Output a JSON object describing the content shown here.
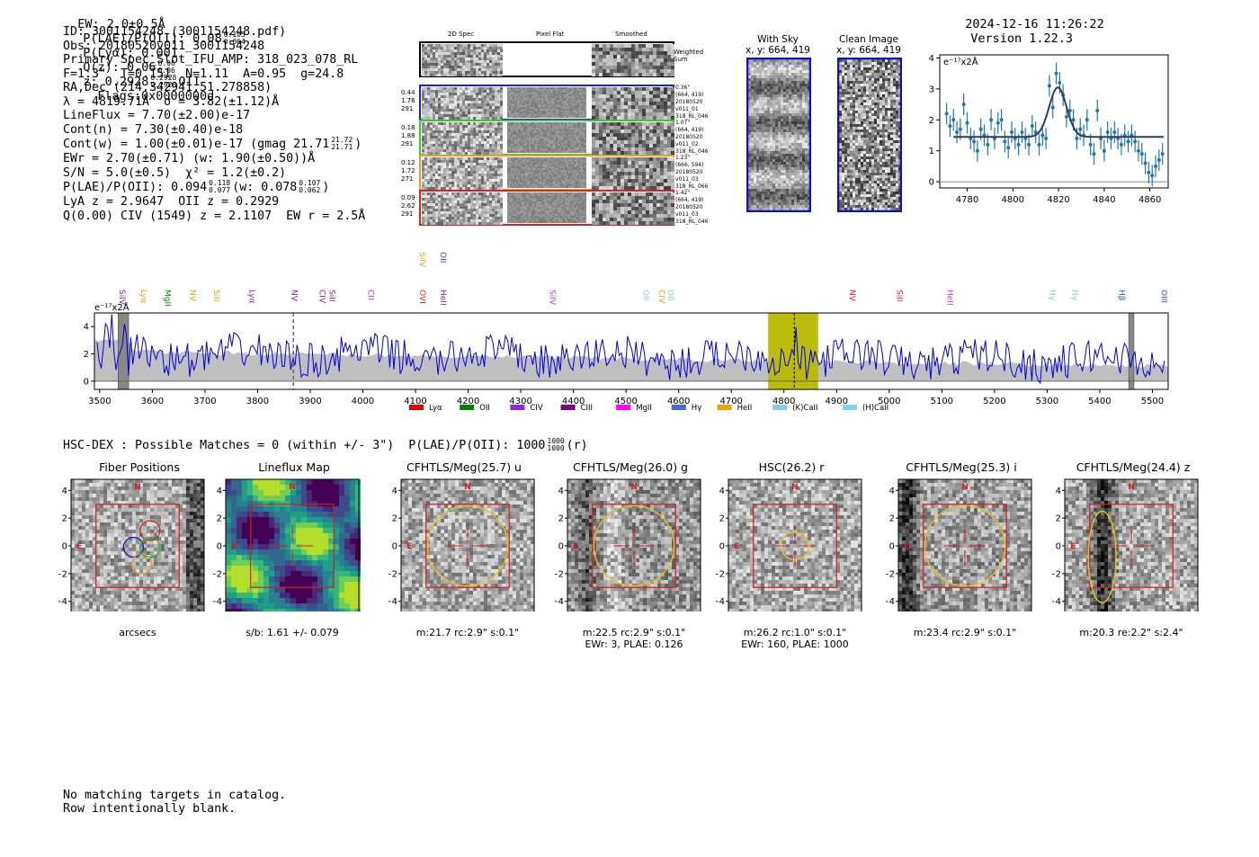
{
  "header": {
    "ew": "EW: 2.0±0.5Å",
    "plae_label": "P(LAE)/P(OII): 0.08",
    "plae_hi": "0.105",
    "plae_lo": "0.064",
    "plya": "P(Lyα): 0.001",
    "qz_label": "Q(z): 0.06",
    "qz_hi": "0.06",
    "qz_lo": "0.06",
    "z_label": "z: 0.2928",
    "z_hi": "0.2928",
    "z_lo": "0.2928",
    "z_line": "OII",
    "flags": "Flags:0x0000000d",
    "timestamp": "2024-12-16 11:26:22",
    "version": "Version 1.22.3"
  },
  "info": {
    "id": "ID: 3001154248 (3001154248.pdf)",
    "obs": "Obs: 20180520v011_3001154248",
    "primary": "Primary Spec_Slot_IFU_AMP: 318_023_078_RL",
    "fline": "F=1.3\"  T=0.151  N=1.11  A=0.95  g=24.8",
    "radec": "RA,Dec (214.342941,51.278858)",
    "lambda": "λ = 4819.71Å  σ = 3.82(±1.12)Å",
    "lineflux": "LineFlux = 7.70(±2.00)e-17",
    "contn": "Cont(n) = 7.30(±0.40)e-18",
    "contw": "Cont(w) = 1.00(±0.01)e-17 (gmag 21.71",
    "contw_hi": "21.72",
    "contw_lo": "21.71",
    "contw_end": ")",
    "ewr": "EWr = 2.70(±0.71) (w: 1.90(±0.50))Å",
    "sn": "S/N = 5.0(±0.5)  χ² = 1.2(±0.2)",
    "plae2": "P(LAE)/P(OII): 0.094",
    "plae2_hi": "0.118",
    "plae2_lo": "0.077",
    "plae2_w": "(w: 0.078",
    "plae2_w_hi": "0.107",
    "plae2_w_lo": "0.062",
    "plae2_end": ")",
    "lya": "LyA z = 2.9647  OII z = 0.2929",
    "civ": "Q(0.00) CIV (1549) z = 2.1107  EW r = 2.5Å"
  },
  "cutouts": {
    "col_2d": "2D Spec",
    "col_flat": "Pixel Flat",
    "col_smooth": "Smoothed",
    "weighted": "Weighted Sum",
    "fibers": [
      {
        "v1": "0.44",
        "v2": "1.76",
        "v3": "291",
        "r1": "0.36\"",
        "r2": "(664, 419)",
        "r3": "20180520",
        "r4": "v011_01",
        "r5": "318_RL_046",
        "color": "#1f1fd0"
      },
      {
        "v1": "0.18",
        "v2": "1.88",
        "v3": "291",
        "r1": "1.07\"",
        "r2": "(664, 419)",
        "r3": "20180520",
        "r4": "v011_02",
        "r5": "318_RL_046",
        "color": "#33cc33"
      },
      {
        "v1": "0.12",
        "v2": "1.72",
        "v3": "271",
        "r1": "1.23\"",
        "r2": "(666, 594)",
        "r3": "20180520",
        "r4": "v011_03",
        "r5": "318_RL_066",
        "color": "#e8a020"
      },
      {
        "v1": "0.09",
        "v2": "2.62",
        "v3": "291",
        "r1": "1.42\"",
        "r2": "(664, 419)",
        "r3": "20180520",
        "r4": "v011_03",
        "r5": "318_RL_046",
        "color": "#e02020"
      }
    ],
    "withsky_title": "With Sky",
    "withsky_xy": "x, y: 664, 419",
    "clean_title": "Clean Image",
    "clean_xy": "x, y: 664, 419"
  },
  "chart_data": [
    {
      "type": "scatter",
      "title": "",
      "ylabel": "e⁻¹⁷x2Å",
      "xlim": [
        4768,
        4868
      ],
      "ylim": [
        -0.2,
        4.1
      ],
      "xticks": [
        4780,
        4800,
        4820,
        4840,
        4860
      ],
      "yticks": [
        0,
        1,
        2,
        3,
        4
      ],
      "points": [
        [
          4771,
          2.2
        ],
        [
          4772.5,
          1.8
        ],
        [
          4774,
          2.0
        ],
        [
          4775.5,
          1.6
        ],
        [
          4777,
          1.7
        ],
        [
          4778.5,
          2.5
        ],
        [
          4780,
          1.9
        ],
        [
          4781.5,
          1.4
        ],
        [
          4783,
          1.3
        ],
        [
          4784.5,
          1.0
        ],
        [
          4786,
          1.7
        ],
        [
          4787.5,
          1.5
        ],
        [
          4789,
          1.2
        ],
        [
          4790.5,
          2.0
        ],
        [
          4792,
          1.4
        ],
        [
          4793.5,
          1.9
        ],
        [
          4795,
          2.0
        ],
        [
          4796.5,
          1.3
        ],
        [
          4798,
          1.1
        ],
        [
          4799.5,
          1.6
        ],
        [
          4801,
          1.4
        ],
        [
          4802.5,
          1.2
        ],
        [
          4804,
          1.6
        ],
        [
          4805.5,
          1.4
        ],
        [
          4807,
          1.2
        ],
        [
          4808.5,
          1.8
        ],
        [
          4810,
          1.6
        ],
        [
          4811.5,
          1.2
        ],
        [
          4813,
          1.5
        ],
        [
          4814.5,
          1.4
        ],
        [
          4816,
          3.1
        ],
        [
          4817.5,
          2.4
        ],
        [
          4819,
          3.5
        ],
        [
          4820.5,
          3.2
        ],
        [
          4822,
          2.8
        ],
        [
          4823.5,
          2.1
        ],
        [
          4825,
          2.3
        ],
        [
          4826.5,
          2.0
        ],
        [
          4828,
          1.4
        ],
        [
          4829.5,
          1.7
        ],
        [
          4831,
          1.5
        ],
        [
          4832.5,
          2.0
        ],
        [
          4834,
          1.2
        ],
        [
          4835.5,
          0.9
        ],
        [
          4837,
          2.3
        ],
        [
          4838.5,
          1.4
        ],
        [
          4840,
          1.0
        ],
        [
          4841.5,
          1.6
        ],
        [
          4843,
          1.4
        ],
        [
          4844.5,
          1.6
        ],
        [
          4846,
          1.4
        ],
        [
          4847.5,
          1.2
        ],
        [
          4849,
          1.5
        ],
        [
          4850.5,
          1.3
        ],
        [
          4852,
          1.5
        ],
        [
          4853.5,
          1.3
        ],
        [
          4855,
          1.0
        ],
        [
          4856.5,
          0.9
        ],
        [
          4858,
          0.6
        ],
        [
          4859.5,
          0.3
        ],
        [
          4861,
          0.2
        ],
        [
          4862.5,
          0.5
        ],
        [
          4864,
          0.7
        ],
        [
          4865.5,
          0.9
        ]
      ],
      "fit": {
        "continuum": 1.45,
        "amplitude": 1.6,
        "center": 4819.7,
        "sigma": 3.8,
        "xrange": [
          4774,
          4866
        ]
      }
    },
    {
      "type": "line",
      "title": "",
      "ylabel": "e⁻¹⁷x2Å",
      "xlim": [
        3490,
        5530
      ],
      "ylim": [
        -0.6,
        5.0
      ],
      "xticks": [
        3500,
        3600,
        3700,
        3800,
        3900,
        4000,
        4100,
        4200,
        4300,
        4400,
        4500,
        4600,
        4700,
        4800,
        4900,
        5000,
        5100,
        5200,
        5300,
        5400,
        5500
      ],
      "yticks": [
        0,
        2,
        4
      ],
      "highlight": [
        4770,
        4865
      ],
      "line_center": 4819.71,
      "dashed_lines": [
        3868
      ],
      "masked": [
        [
          3535,
          3555
        ],
        [
          5455,
          5465
        ]
      ],
      "series_color": "#0000e0",
      "sky_color": "#c0c0c0",
      "line_labels": [
        {
          "text": "SiIV",
          "x": 3533,
          "row": 0,
          "color": "#7b22b2"
        },
        {
          "text": "Lyα",
          "x": 3574,
          "row": 0,
          "color": "#f09a14"
        },
        {
          "text": "MgII",
          "x": 3619,
          "row": 0,
          "color": "#0a8a0a"
        },
        {
          "text": "NV",
          "x": 3667,
          "row": 0,
          "color": "#e8a020"
        },
        {
          "text": "SiII",
          "x": 3712,
          "row": 0,
          "color": "#e8a020"
        },
        {
          "text": "Lyα",
          "x": 3780,
          "row": 0,
          "color": "#7b22b2"
        },
        {
          "text": "NV",
          "x": 3860,
          "row": 0,
          "color": "#7b22b2"
        },
        {
          "text": "CIV",
          "x": 3913,
          "row": 0,
          "color": "#7b22b2"
        },
        {
          "text": "SiII",
          "x": 3932,
          "row": 0,
          "color": "#7b22b2"
        },
        {
          "text": "CII",
          "x": 4005,
          "row": 0,
          "color": "#e020e0"
        },
        {
          "text": "OVI",
          "x": 4103,
          "row": 0,
          "color": "#e02020"
        },
        {
          "text": "HeII",
          "x": 4143,
          "row": 0,
          "color": "#7b22b2"
        },
        {
          "text": "SiIV",
          "x": 4103,
          "row": 1,
          "color": "#e8a020"
        },
        {
          "text": "OII",
          "x": 4143,
          "row": 1,
          "color": "#3030e0"
        },
        {
          "text": "SiIV",
          "x": 4350,
          "row": 0,
          "color": "#b040e0"
        },
        {
          "text": "OII",
          "x": 4528,
          "row": 0,
          "color": "#88c8e8"
        },
        {
          "text": "CIV",
          "x": 4558,
          "row": 0,
          "color": "#e8a020"
        },
        {
          "text": "OII",
          "x": 4575,
          "row": 0,
          "color": "#88c8e8"
        },
        {
          "text": "NV",
          "x": 4920,
          "row": 0,
          "color": "#e02020"
        },
        {
          "text": "SiII",
          "x": 5010,
          "row": 0,
          "color": "#e02020"
        },
        {
          "text": "HeII",
          "x": 5105,
          "row": 0,
          "color": "#b040e0"
        },
        {
          "text": "Hγ",
          "x": 5300,
          "row": 0,
          "color": "#88c8e8"
        },
        {
          "text": "Hγ",
          "x": 5343,
          "row": 0,
          "color": "#88c8e8"
        },
        {
          "text": "Hβ",
          "x": 5432,
          "row": 0,
          "color": "#3050e0"
        },
        {
          "text": "OIII",
          "x": 5512,
          "row": 0,
          "color": "#3050e0"
        }
      ],
      "legend": [
        {
          "name": "Lyα",
          "color": "#e00000"
        },
        {
          "name": "OII",
          "color": "#008000"
        },
        {
          "name": "CIV",
          "color": "#8a2be2"
        },
        {
          "name": "CIII",
          "color": "#800080"
        },
        {
          "name": "MgII",
          "color": "#ff00ff"
        },
        {
          "name": "Hγ",
          "color": "#4169e1"
        },
        {
          "name": "HeII",
          "color": "#f5a000"
        },
        {
          "name": "(K)CaII",
          "color": "#87ceeb"
        },
        {
          "name": "(H)CaII",
          "color": "#87ceeb"
        }
      ],
      "legend_position": "bottom-center"
    }
  ],
  "hsc": {
    "title": "HSC-DEX : Possible Matches = 0 (within +/- 3\")  P(LAE)/P(OII): 1000",
    "frac_hi": "1000",
    "frac_lo": "1000",
    "suffix": "(r)"
  },
  "panels": [
    {
      "title": "Fiber Positions",
      "foot1": "arcsecs",
      "foot2": "",
      "kind": "fiber"
    },
    {
      "title": "Lineflux Map",
      "foot1": "s/b: 1.61 +/- 0.079",
      "foot2": "",
      "kind": "flux"
    },
    {
      "title": "CFHTLS/Meg(25.7) u",
      "foot1": "m:21.7 rc:2.9\"  s:0.1\"",
      "foot2": "",
      "kind": "img",
      "ellipse": [
        0,
        0,
        2.9,
        2.9
      ]
    },
    {
      "title": "CFHTLS/Meg(26.0) g",
      "foot1": "m:22.5 rc:2.9\"  s:0.1\"",
      "foot2": "EWr: 3, PLAE: 0.126",
      "kind": "img",
      "ellipse": [
        0,
        0,
        2.9,
        2.9
      ]
    },
    {
      "title": "HSC(26.2) r",
      "foot1": "m:26.2 rc:1.0\"  s:0.1\"",
      "foot2": "EWr: 160, PLAE: 1000",
      "kind": "img",
      "ellipse": [
        0,
        0,
        1.0,
        1.0
      ]
    },
    {
      "title": "CFHTLS/Meg(25.3) i",
      "foot1": "m:23.4 rc:2.9\"  s:0.1\"",
      "foot2": "",
      "kind": "img",
      "ellipse": [
        0,
        0,
        2.9,
        2.9
      ]
    },
    {
      "title": "CFHTLS/Meg(24.4) z",
      "foot1": "m:20.3  re:2.2\"  s:2.4\"",
      "foot2": "",
      "kind": "img",
      "ellipse": [
        -2.1,
        -0.8,
        1.0,
        3.3
      ]
    }
  ],
  "panel_labels": {
    "north": "N",
    "east": "E"
  },
  "panel_ticks": [
    "−4",
    "−2",
    "0",
    "2",
    "4"
  ],
  "footer": {
    "line1": "No matching targets in catalog.",
    "line2": "Row intentionally blank."
  }
}
